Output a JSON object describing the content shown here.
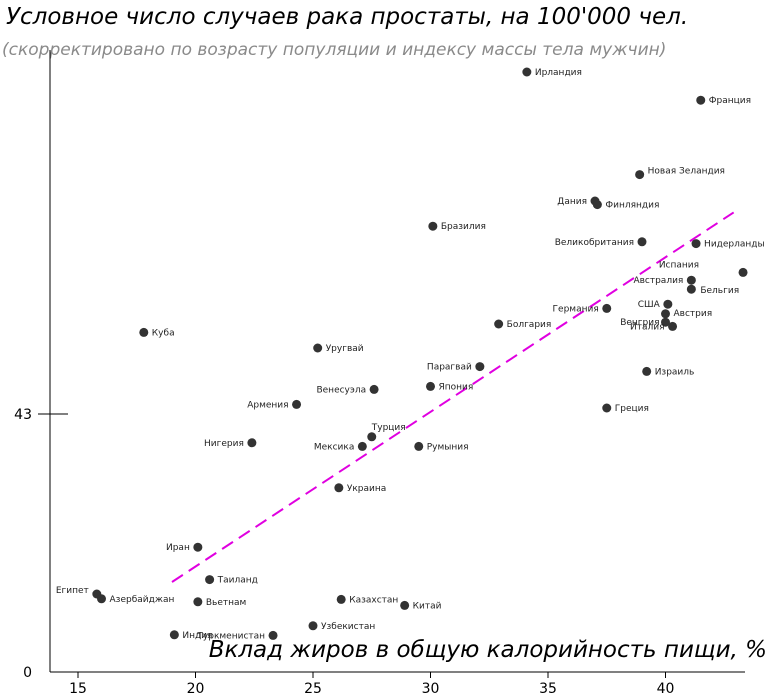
{
  "chart_data": {
    "type": "scatter",
    "title": "Условное число случаев рака простаты, на 100'000 чел.",
    "subtitle": "(скорректировано по возрасту популяции и индексу массы тела мужчин)",
    "xlabel": "Вклад жиров в общую калорийность пищи, %",
    "ylabel": "",
    "xlim": [
      13.8,
      43.4
    ],
    "ylim": [
      0,
      106
    ],
    "x_ticks": [
      15,
      20,
      25,
      30,
      35,
      40
    ],
    "y_ticks": [
      0,
      43
    ],
    "grid": false,
    "trendline": {
      "color": "#e000e0",
      "style": "dashed",
      "x": [
        19.0,
        42.9
      ],
      "y": [
        15.0,
        76.6
      ]
    },
    "point_color": "#333333",
    "points": [
      {
        "label": "Ирландия",
        "x": 34.1,
        "y": 100.0
      },
      {
        "label": "Франция",
        "x": 41.5,
        "y": 95.3
      },
      {
        "label": "Новая Зеландия",
        "x": 38.9,
        "y": 82.9
      },
      {
        "label": "Дания",
        "x": 37.0,
        "y": 78.5
      },
      {
        "label": "Финляндия",
        "x": 37.1,
        "y": 77.9
      },
      {
        "label": "Бразилия",
        "x": 30.1,
        "y": 74.3
      },
      {
        "label": "Великобритания",
        "x": 39.0,
        "y": 71.7
      },
      {
        "label": "Нидерланды",
        "x": 41.3,
        "y": 71.4
      },
      {
        "label": "Испания",
        "x": 43.3,
        "y": 66.6
      },
      {
        "label": "Австралия",
        "x": 41.1,
        "y": 65.3
      },
      {
        "label": "Бельгия",
        "x": 41.1,
        "y": 63.8
      },
      {
        "label": "США",
        "x": 40.1,
        "y": 61.3
      },
      {
        "label": "Германия",
        "x": 37.5,
        "y": 60.6
      },
      {
        "label": "Австрия",
        "x": 40.0,
        "y": 59.7
      },
      {
        "label": "Венгрия",
        "x": 40.0,
        "y": 58.3
      },
      {
        "label": "Италия",
        "x": 40.3,
        "y": 57.6
      },
      {
        "label": "Болгария",
        "x": 32.9,
        "y": 58.0
      },
      {
        "label": "Куба",
        "x": 17.8,
        "y": 56.6
      },
      {
        "label": "Уругвай",
        "x": 25.2,
        "y": 54.0
      },
      {
        "label": "Парагвай",
        "x": 32.1,
        "y": 50.9
      },
      {
        "label": "Израиль",
        "x": 39.2,
        "y": 50.1
      },
      {
        "label": "Япония",
        "x": 30.0,
        "y": 47.6
      },
      {
        "label": "Венесуэла",
        "x": 27.6,
        "y": 47.1
      },
      {
        "label": "Армения",
        "x": 24.3,
        "y": 44.6
      },
      {
        "label": "Греция",
        "x": 37.5,
        "y": 44.0
      },
      {
        "label": "Турция",
        "x": 27.5,
        "y": 39.2
      },
      {
        "label": "Нигерия",
        "x": 22.4,
        "y": 38.2
      },
      {
        "label": "Мексика",
        "x": 27.1,
        "y": 37.6
      },
      {
        "label": "Румыния",
        "x": 29.5,
        "y": 37.6
      },
      {
        "label": "Украина",
        "x": 26.1,
        "y": 30.7
      },
      {
        "label": "Иран",
        "x": 20.1,
        "y": 20.8
      },
      {
        "label": "Таиланд",
        "x": 20.6,
        "y": 15.4
      },
      {
        "label": "Египет",
        "x": 15.8,
        "y": 13.0
      },
      {
        "label": "Азербайджан",
        "x": 16.0,
        "y": 12.2
      },
      {
        "label": "Вьетнам",
        "x": 20.1,
        "y": 11.7
      },
      {
        "label": "Казахстан",
        "x": 26.2,
        "y": 12.1
      },
      {
        "label": "Китай",
        "x": 28.9,
        "y": 11.1
      },
      {
        "label": "Узбекистан",
        "x": 25.0,
        "y": 7.7
      },
      {
        "label": "Туркменистан",
        "x": 23.3,
        "y": 6.1
      },
      {
        "label": "Индия",
        "x": 19.1,
        "y": 6.2
      }
    ]
  }
}
